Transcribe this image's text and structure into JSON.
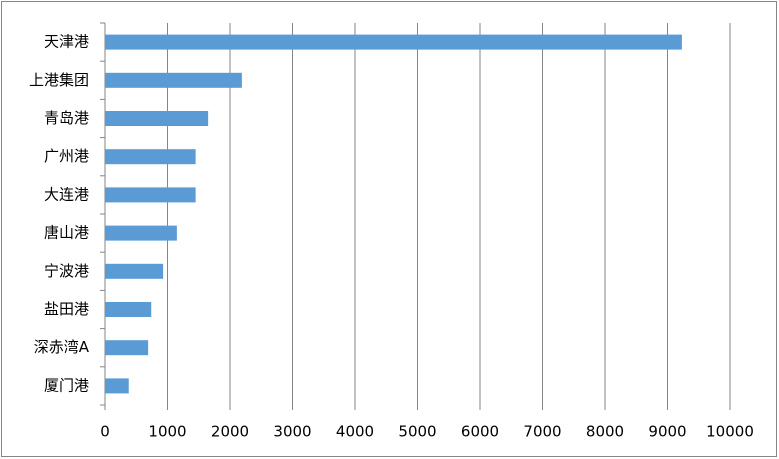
{
  "chart_data": {
    "type": "bar",
    "orientation": "horizontal",
    "categories": [
      "天津港",
      "上港集团",
      "青岛港",
      "广州港",
      "大连港",
      "唐山港",
      "宁波港",
      "盐田港",
      "深赤湾A",
      "厦门港"
    ],
    "values": [
      9230,
      2190,
      1650,
      1450,
      1450,
      1150,
      930,
      740,
      690,
      380
    ],
    "color": "#5b9bd5",
    "xlim": [
      0,
      10000
    ],
    "xticks": [
      0,
      1000,
      2000,
      3000,
      4000,
      5000,
      6000,
      7000,
      8000,
      9000,
      10000
    ],
    "grid": true
  }
}
